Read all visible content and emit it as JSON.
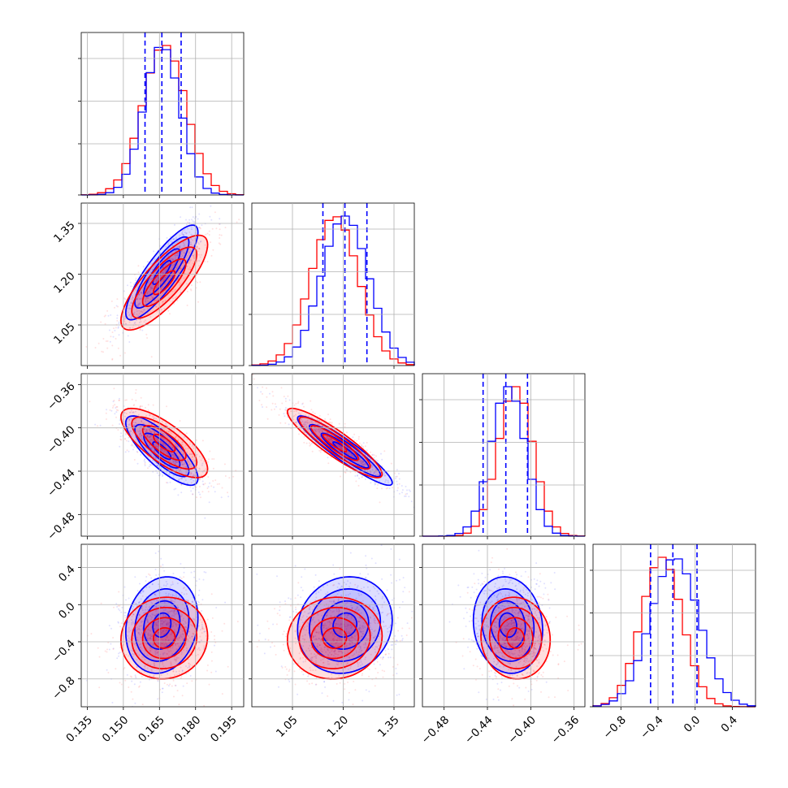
{
  "chart_data": {
    "type": "corner",
    "grid": true,
    "params": [
      {
        "range": [
          0.1325,
          0.2
        ],
        "ticks": [
          0.135,
          0.15,
          0.165,
          0.18,
          0.195
        ],
        "tick_labels": [
          "0.135",
          "0.150",
          "0.165",
          "0.180",
          "0.195"
        ]
      },
      {
        "range": [
          0.93,
          1.41
        ],
        "ticks": [
          1.05,
          1.2,
          1.35
        ],
        "tick_labels": [
          "1.05",
          "1.20",
          "1.35"
        ]
      },
      {
        "range": [
          -0.5,
          -0.35
        ],
        "ticks": [
          -0.48,
          -0.44,
          -0.4,
          -0.36
        ],
        "tick_labels": [
          "−0.48",
          "−0.44",
          "−0.40",
          "−0.36"
        ]
      },
      {
        "range": [
          -1.1,
          0.65
        ],
        "ticks": [
          -0.8,
          -0.4,
          0.0,
          0.4
        ],
        "tick_labels": [
          "−0.8",
          "−0.4",
          "0.0",
          "0.4"
        ]
      }
    ],
    "series": [
      {
        "color": "#0000ff",
        "mean": [
          0.166,
          1.205,
          -0.421,
          -0.22
        ],
        "sd": [
          0.0075,
          0.07,
          0.016,
          0.26
        ],
        "corr": [
          [
            1,
            0.85,
            -0.8,
            0.15
          ],
          [
            0.85,
            1,
            -0.93,
            0.1
          ],
          [
            -0.8,
            -0.93,
            1,
            -0.1
          ],
          [
            0.15,
            0.1,
            -0.1,
            1
          ]
        ],
        "quantiles": [
          [
            0.159,
            0.166,
            0.174
          ],
          [
            1.14,
            1.205,
            1.27
          ],
          [
            -0.444,
            -0.423,
            -0.403
          ],
          [
            -0.48,
            -0.24,
            0.02
          ]
        ]
      },
      {
        "color": "#ff0000",
        "mean": [
          0.167,
          1.175,
          -0.414,
          -0.36
        ],
        "sd": [
          0.009,
          0.07,
          0.016,
          0.22
        ],
        "corr": [
          [
            1,
            0.8,
            -0.75,
            0.05
          ],
          [
            0.8,
            1,
            -0.9,
            0.05
          ],
          [
            -0.75,
            -0.9,
            1,
            -0.05
          ],
          [
            0.05,
            0.05,
            -0.05,
            1
          ]
        ]
      }
    ],
    "quantile_line_color": "#0000ff"
  }
}
